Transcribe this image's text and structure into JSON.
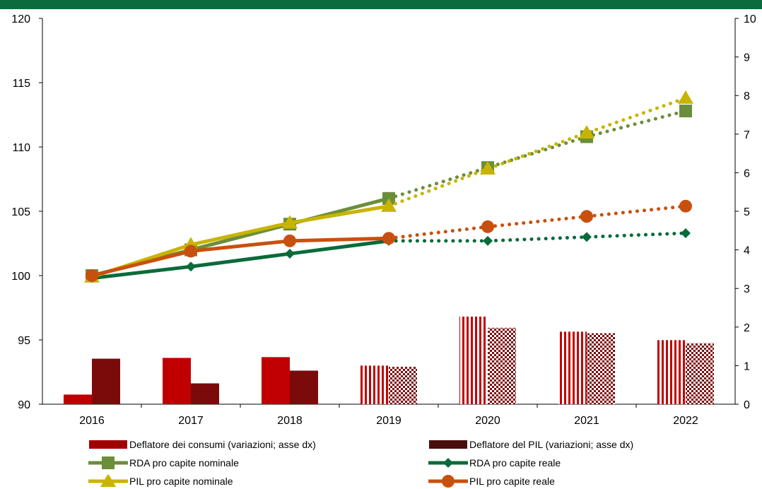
{
  "chart_data": {
    "type": "bar+line",
    "categories": [
      "2016",
      "2017",
      "2018",
      "2019",
      "2020",
      "2021",
      "2022"
    ],
    "y_left": {
      "ylim": [
        90,
        120
      ],
      "ticks": [
        "90",
        "95",
        "100",
        "105",
        "110",
        "115",
        "120"
      ]
    },
    "y_right": {
      "ylim": [
        0,
        10
      ],
      "ticks": [
        "0",
        "1",
        "2",
        "3",
        "4",
        "5",
        "6",
        "7",
        "8",
        "9",
        "10"
      ]
    },
    "projection_from_index": 3,
    "bar_series": [
      {
        "name": "Deflatore dei consumi (variazioni; asse dx)",
        "axis": "right",
        "color": "#c00000",
        "values": [
          0.25,
          1.2,
          1.22,
          1.0,
          2.27,
          1.88,
          1.66
        ]
      },
      {
        "name": "Deflatore del PIL (variazioni; asse dx)",
        "axis": "right",
        "color": "#7b0b0b",
        "values": [
          1.18,
          0.54,
          0.87,
          0.97,
          1.98,
          1.84,
          1.58
        ]
      }
    ],
    "line_series": [
      {
        "name": "RDA pro capite nominale",
        "axis": "left",
        "color": "#6b8e3a",
        "marker": "square",
        "values": [
          100.0,
          102.0,
          104.0,
          106.0,
          108.4,
          110.8,
          112.8
        ]
      },
      {
        "name": "RDA pro capite reale",
        "axis": "left",
        "color": "#0a6b3a",
        "marker": "diamond",
        "values": [
          99.8,
          100.7,
          101.7,
          102.7,
          102.7,
          103.0,
          103.3
        ]
      },
      {
        "name": "PIL pro capite nominale",
        "axis": "left",
        "color": "#c8b400",
        "marker": "triangle",
        "values": [
          99.9,
          102.4,
          104.1,
          105.4,
          108.3,
          111.1,
          113.8
        ]
      },
      {
        "name": "PIL pro capite reale",
        "axis": "left",
        "color": "#c8500f",
        "marker": "circle",
        "values": [
          100.0,
          101.9,
          102.7,
          102.9,
          103.8,
          104.6,
          105.4
        ]
      }
    ]
  },
  "legend_order": [
    0,
    1,
    2,
    3,
    4,
    5
  ]
}
